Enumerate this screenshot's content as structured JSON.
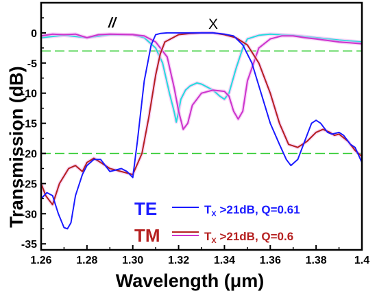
{
  "chart_data": {
    "type": "line",
    "xlabel": "Wavelength (μm)",
    "ylabel": "Transmission (dB)",
    "xlim": [
      1.26,
      1.4
    ],
    "ylim": [
      -36,
      5
    ],
    "xticks": [
      "1.26",
      "1.28",
      "1.30",
      "1.32",
      "1.34",
      "1.36",
      "1.38",
      "1.4"
    ],
    "yticks": [
      "0",
      "-5",
      "-10",
      "-15",
      "-20",
      "-25",
      "-30",
      "-35"
    ],
    "annotations": {
      "parallel": "//",
      "cross": "X"
    },
    "reference_lines": [
      -3,
      -20
    ],
    "reference_color": "#33cc33",
    "legend": [
      {
        "label": "TE",
        "color": "#1a1aff",
        "entry_prefix": "T",
        "entry_sub": "X",
        "entry_text": " >21dB, Q=0.61"
      },
      {
        "label": "TM",
        "color": "#b52020",
        "entry_prefix": "T",
        "entry_sub": "X",
        "entry_text": " >21dB, Q=0.6"
      }
    ],
    "series": [
      {
        "color": "#1a1aff",
        "glow": false,
        "x": [
          1.26,
          1.2625,
          1.265,
          1.2675,
          1.27,
          1.2715,
          1.273,
          1.275,
          1.278,
          1.28,
          1.283,
          1.286,
          1.288,
          1.29,
          1.295,
          1.2975,
          1.3,
          1.302,
          1.305,
          1.308,
          1.31,
          1.312,
          1.315,
          1.32,
          1.325,
          1.33,
          1.335,
          1.34,
          1.344,
          1.348,
          1.352,
          1.356,
          1.36,
          1.364,
          1.367,
          1.369,
          1.372,
          1.375,
          1.378,
          1.38,
          1.382,
          1.385,
          1.387,
          1.39,
          1.392,
          1.395,
          1.397,
          1.4
        ],
        "y": [
          -27.5,
          -26.5,
          -27.0,
          -30.0,
          -32.3,
          -32.5,
          -31.5,
          -27.0,
          -23.5,
          -22.0,
          -21.0,
          -21.0,
          -22.0,
          -23.0,
          -22.5,
          -23.0,
          -24.0,
          -18.0,
          -8.0,
          -2.0,
          -0.3,
          -0.1,
          0.0,
          0.0,
          0.0,
          0.0,
          0.0,
          -0.2,
          -0.5,
          -2.0,
          -5.0,
          -10.0,
          -15.0,
          -18.5,
          -21.0,
          -22.0,
          -21.0,
          -18.0,
          -15.0,
          -14.5,
          -15.0,
          -16.5,
          -16.8,
          -16.5,
          -17.0,
          -18.5,
          -19.0,
          -21.5
        ]
      },
      {
        "color": "#b52020",
        "glow": true,
        "x": [
          1.26,
          1.262,
          1.265,
          1.268,
          1.272,
          1.275,
          1.278,
          1.28,
          1.283,
          1.286,
          1.29,
          1.295,
          1.3,
          1.304,
          1.307,
          1.31,
          1.312,
          1.314,
          1.32,
          1.325,
          1.33,
          1.335,
          1.34,
          1.345,
          1.35,
          1.355,
          1.36,
          1.364,
          1.368,
          1.372,
          1.376,
          1.38,
          1.383,
          1.386,
          1.388,
          1.39,
          1.394,
          1.397,
          1.4
        ],
        "y": [
          -25.0,
          -27.0,
          -28.5,
          -25.0,
          -22.5,
          -22.0,
          -23.0,
          -21.5,
          -20.8,
          -21.5,
          -22.5,
          -23.0,
          -23.5,
          -20.0,
          -14.0,
          -7.0,
          -3.5,
          -1.5,
          -0.3,
          -0.1,
          0.0,
          0.0,
          -0.3,
          -0.8,
          -2.0,
          -5.0,
          -10.0,
          -15.0,
          -18.5,
          -19.0,
          -18.0,
          -16.5,
          -16.0,
          -16.5,
          -17.0,
          -16.8,
          -18.0,
          -19.5,
          -20.5
        ]
      },
      {
        "color": "#22dddd",
        "glow": true,
        "x": [
          1.26,
          1.27,
          1.28,
          1.29,
          1.3,
          1.305,
          1.31,
          1.313,
          1.316,
          1.318,
          1.319,
          1.32,
          1.321,
          1.323,
          1.325,
          1.328,
          1.33,
          1.335,
          1.338,
          1.34,
          1.342,
          1.345,
          1.348,
          1.35,
          1.355,
          1.36,
          1.37,
          1.38,
          1.39,
          1.4
        ],
        "y": [
          -0.8,
          -0.4,
          -0.8,
          -0.3,
          -0.3,
          -0.8,
          -2.5,
          -5.0,
          -10.0,
          -13.0,
          -14.8,
          -13.0,
          -11.0,
          -9.5,
          -8.8,
          -8.3,
          -8.5,
          -9.5,
          -10.5,
          -11.0,
          -10.0,
          -6.0,
          -2.5,
          -1.0,
          -0.4,
          -0.2,
          -0.4,
          -0.8,
          -1.2,
          -1.5
        ]
      },
      {
        "color": "#cc33cc",
        "glow": true,
        "x": [
          1.26,
          1.265,
          1.27,
          1.275,
          1.28,
          1.285,
          1.29,
          1.3,
          1.305,
          1.31,
          1.315,
          1.318,
          1.32,
          1.322,
          1.324,
          1.326,
          1.33,
          1.335,
          1.34,
          1.342,
          1.344,
          1.346,
          1.348,
          1.35,
          1.355,
          1.36,
          1.365,
          1.37,
          1.375,
          1.38,
          1.39,
          1.4
        ],
        "y": [
          -0.5,
          -0.2,
          -0.3,
          -0.2,
          -0.8,
          -0.3,
          -0.2,
          -0.3,
          -0.5,
          -1.5,
          -4.0,
          -9.0,
          -13.0,
          -16.0,
          -15.0,
          -12.0,
          -10.0,
          -9.5,
          -9.7,
          -10.5,
          -13.0,
          -14.3,
          -13.0,
          -8.0,
          -2.5,
          -1.0,
          -0.5,
          -0.5,
          -0.8,
          -1.0,
          -1.5,
          -1.8
        ]
      }
    ]
  }
}
